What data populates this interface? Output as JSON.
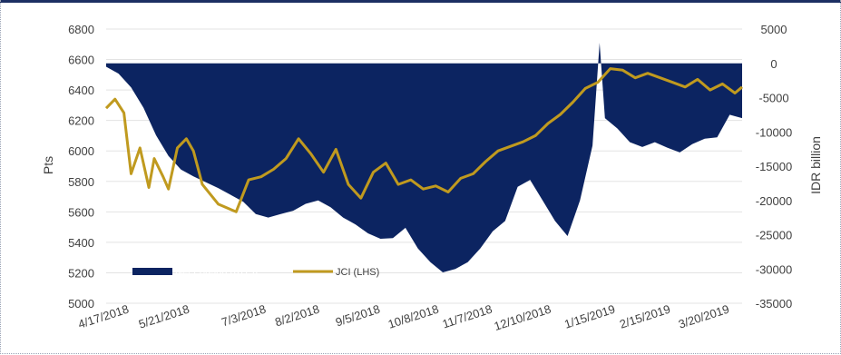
{
  "chart_data": {
    "type": "area+line",
    "title": "",
    "ylabel_left": "Pts",
    "ylabel_right": "IDR billion",
    "ylim_left": [
      5000,
      6800
    ],
    "ylim_right": [
      -35000,
      5000
    ],
    "yticks_left": [
      "6800",
      "6600",
      "6400",
      "6200",
      "6000",
      "5800",
      "5600",
      "5400",
      "5200",
      "5000"
    ],
    "yticks_right": [
      "5000",
      "0",
      "-5000",
      "-10000",
      "-15000",
      "-20000",
      "-25000",
      "-30000",
      "-35000"
    ],
    "xticks": [
      "4/17/2018",
      "5/21/2018",
      "7/3/2018",
      "8/2/2018",
      "9/5/2018",
      "10/8/2018",
      "11/7/2018",
      "12/10/2018",
      "1/15/2019",
      "2/15/2019",
      "3/20/2019"
    ],
    "x_range": [
      "2018-04-13",
      "2019-04-05"
    ],
    "legend_position": "bottom-left",
    "colors": {
      "net_foreign": "#0c2461",
      "jci": "#c09a1f"
    },
    "series": [
      {
        "name": "Net Foreign (RHS)",
        "type": "area",
        "axis": "right",
        "x": [
          "2018-04-13",
          "2018-04-20",
          "2018-04-27",
          "2018-05-04",
          "2018-05-11",
          "2018-05-18",
          "2018-05-25",
          "2018-06-01",
          "2018-06-15",
          "2018-06-29",
          "2018-07-06",
          "2018-07-13",
          "2018-07-20",
          "2018-07-27",
          "2018-08-03",
          "2018-08-10",
          "2018-08-17",
          "2018-08-24",
          "2018-08-31",
          "2018-09-07",
          "2018-09-14",
          "2018-09-21",
          "2018-09-28",
          "2018-10-05",
          "2018-10-12",
          "2018-10-19",
          "2018-10-26",
          "2018-11-02",
          "2018-11-09",
          "2018-11-16",
          "2018-11-23",
          "2018-11-30",
          "2018-12-07",
          "2018-12-14",
          "2018-12-21",
          "2018-12-28",
          "2019-01-04",
          "2019-01-11",
          "2019-01-15",
          "2019-01-18",
          "2019-01-25",
          "2019-02-01",
          "2019-02-08",
          "2019-02-15",
          "2019-02-22",
          "2019-03-01",
          "2019-03-08",
          "2019-03-15",
          "2019-03-22",
          "2019-03-29",
          "2019-04-05"
        ],
        "values": [
          -500,
          -1500,
          -3500,
          -6500,
          -10500,
          -13500,
          -15500,
          -16500,
          -18200,
          -20200,
          -22000,
          -22500,
          -22000,
          -21500,
          -20500,
          -20000,
          -21000,
          -22500,
          -23500,
          -24800,
          -25600,
          -25500,
          -24000,
          -27000,
          -29000,
          -30500,
          -30000,
          -29000,
          -27000,
          -24500,
          -23000,
          -18000,
          -17000,
          -20000,
          -23000,
          -25200,
          -20000,
          -12000,
          3000,
          -8000,
          -9500,
          -11500,
          -12200,
          -11500,
          -12300,
          -13000,
          -11800,
          -11000,
          -10800,
          -7500,
          -8000
        ]
      },
      {
        "name": "JCI (LHS)",
        "type": "line",
        "axis": "left",
        "x": [
          "2018-04-13",
          "2018-04-18",
          "2018-04-23",
          "2018-04-27",
          "2018-05-02",
          "2018-05-07",
          "2018-05-10",
          "2018-05-15",
          "2018-05-18",
          "2018-05-23",
          "2018-05-28",
          "2018-06-01",
          "2018-06-06",
          "2018-06-15",
          "2018-06-25",
          "2018-07-02",
          "2018-07-09",
          "2018-07-16",
          "2018-07-23",
          "2018-07-30",
          "2018-08-06",
          "2018-08-13",
          "2018-08-20",
          "2018-08-27",
          "2018-09-03",
          "2018-09-10",
          "2018-09-17",
          "2018-09-24",
          "2018-10-01",
          "2018-10-08",
          "2018-10-15",
          "2018-10-22",
          "2018-10-29",
          "2018-11-05",
          "2018-11-12",
          "2018-11-19",
          "2018-11-26",
          "2018-12-03",
          "2018-12-10",
          "2018-12-17",
          "2018-12-24",
          "2018-12-31",
          "2019-01-07",
          "2019-01-14",
          "2019-01-21",
          "2019-01-28",
          "2019-02-04",
          "2019-02-11",
          "2019-02-18",
          "2019-02-25",
          "2019-03-04",
          "2019-03-11",
          "2019-03-18",
          "2019-03-25",
          "2019-04-01",
          "2019-04-05"
        ],
        "values": [
          6280,
          6340,
          6250,
          5850,
          6020,
          5760,
          5950,
          5830,
          5750,
          6020,
          6080,
          6000,
          5780,
          5650,
          5600,
          5810,
          5830,
          5880,
          5950,
          6080,
          5980,
          5860,
          6010,
          5780,
          5690,
          5860,
          5920,
          5780,
          5810,
          5750,
          5770,
          5730,
          5820,
          5850,
          5930,
          6000,
          6030,
          6060,
          6100,
          6180,
          6240,
          6320,
          6410,
          6450,
          6540,
          6530,
          6480,
          6510,
          6480,
          6450,
          6420,
          6470,
          6400,
          6440,
          6380,
          6420
        ]
      }
    ]
  }
}
